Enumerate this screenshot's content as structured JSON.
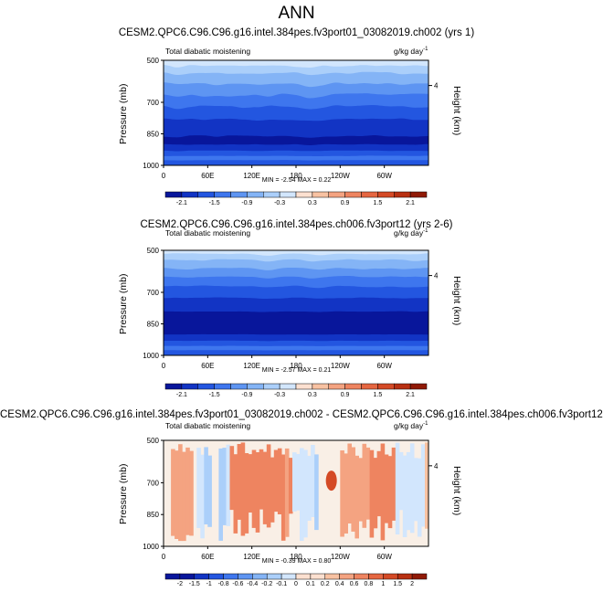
{
  "figure": {
    "title": "ANN",
    "colors": {
      "frame": "#000000",
      "blues": [
        "#08169b",
        "#1234c4",
        "#2356e0",
        "#3e76ee",
        "#5e95f2",
        "#84b4f6",
        "#abcffa",
        "#d2e6fd"
      ],
      "reds": [
        "#fce0d0",
        "#f8c2a2",
        "#f4a381",
        "#ee8460",
        "#e56641",
        "#d44a26",
        "#b83012",
        "#901a06"
      ],
      "white": "#ffffff"
    }
  },
  "chart_data": [
    {
      "type": "contour",
      "id": "panel1",
      "title": "CESM2.QPC6.C96.C96.g16.intel.384pes.fv3port01_03082019.ch002 (yrs 1)",
      "left_label": "Total diabatic moistening",
      "right_label": "g/kg day",
      "right_label_sup": "-1",
      "ylabel": "Pressure (mb)",
      "y2label": "Height (km)",
      "yticks": [
        "500",
        "700",
        "850",
        "1000"
      ],
      "yticks_values": [
        500,
        700,
        850,
        1000
      ],
      "ylim": [
        500,
        1000
      ],
      "y2ticks": [
        "4"
      ],
      "xticks": [
        "0",
        "60E",
        "120E",
        "180",
        "120W",
        "60W"
      ],
      "xticks_values": [
        0,
        60,
        120,
        180,
        240,
        300
      ],
      "xlim": [
        0,
        360
      ],
      "minmax": "MIN = -2.54   MAX = 0.22",
      "min": -2.54,
      "max": 0.22,
      "colorbar_labels": [
        "-2.1",
        "-1.5",
        "-0.9",
        "-0.3",
        "0.3",
        "0.9",
        "1.5",
        "2.1"
      ],
      "colorbar_levels": [
        -2.4,
        -2.1,
        -1.8,
        -1.5,
        -1.2,
        -0.9,
        -0.6,
        -0.3,
        0,
        0.3,
        0.6,
        0.9,
        1.2,
        1.5,
        1.8,
        2.1,
        2.4
      ]
    },
    {
      "type": "contour",
      "id": "panel2",
      "title": "CESM2.QPC6.C96.C96.g16.intel.384pes.ch006.fv3port12 (yrs 2-6)",
      "left_label": "Total diabatic moistening",
      "right_label": "g/kg day",
      "right_label_sup": "-1",
      "ylabel": "Pressure (mb)",
      "y2label": "Height (km)",
      "yticks": [
        "500",
        "700",
        "850",
        "1000"
      ],
      "yticks_values": [
        500,
        700,
        850,
        1000
      ],
      "ylim": [
        500,
        1000
      ],
      "y2ticks": [
        "4"
      ],
      "xticks": [
        "0",
        "60E",
        "120E",
        "180",
        "120W",
        "60W"
      ],
      "xticks_values": [
        0,
        60,
        120,
        180,
        240,
        300
      ],
      "xlim": [
        0,
        360
      ],
      "minmax": "MIN = -2.57   MAX = 0.21",
      "min": -2.57,
      "max": 0.21,
      "colorbar_labels": [
        "-2.1",
        "-1.5",
        "-0.9",
        "-0.3",
        "0.3",
        "0.9",
        "1.5",
        "2.1"
      ],
      "colorbar_levels": [
        -2.4,
        -2.1,
        -1.8,
        -1.5,
        -1.2,
        -0.9,
        -0.6,
        -0.3,
        0,
        0.3,
        0.6,
        0.9,
        1.2,
        1.5,
        1.8,
        2.1,
        2.4
      ]
    },
    {
      "type": "contour",
      "id": "panel3",
      "title": "CESM2.QPC6.C96.C96.g16.intel.384pes.fv3port01_03082019.ch002 - CESM2.QPC6.C96.C96.g16.intel.384pes.ch006.fv3port12",
      "left_label": "Total diabatic moistening",
      "right_label": "g/kg day",
      "right_label_sup": "-1",
      "ylabel": "Pressure (mb)",
      "y2label": "Height (km)",
      "yticks": [
        "500",
        "700",
        "850",
        "1000"
      ],
      "yticks_values": [
        500,
        700,
        850,
        1000
      ],
      "ylim": [
        500,
        1000
      ],
      "y2ticks": [
        "4"
      ],
      "xticks": [
        "0",
        "60E",
        "120E",
        "180",
        "120W",
        "60W"
      ],
      "xticks_values": [
        0,
        60,
        120,
        180,
        240,
        300
      ],
      "xlim": [
        0,
        360
      ],
      "minmax": "MIN = -0.39   MAX = 0.80",
      "min": -0.39,
      "max": 0.8,
      "colorbar_labels": [
        "-2",
        "-1.5",
        "-1",
        "-0.8",
        "-0.6",
        "-0.4",
        "-0.2",
        "-0.1",
        "0",
        "0.1",
        "0.2",
        "0.4",
        "0.6",
        "0.8",
        "1",
        "1.5",
        "2"
      ],
      "colorbar_levels": [
        -2,
        -1.5,
        -1,
        -0.8,
        -0.6,
        -0.4,
        -0.2,
        -0.1,
        0,
        0.1,
        0.2,
        0.4,
        0.6,
        0.8,
        1,
        1.5,
        2
      ]
    }
  ]
}
